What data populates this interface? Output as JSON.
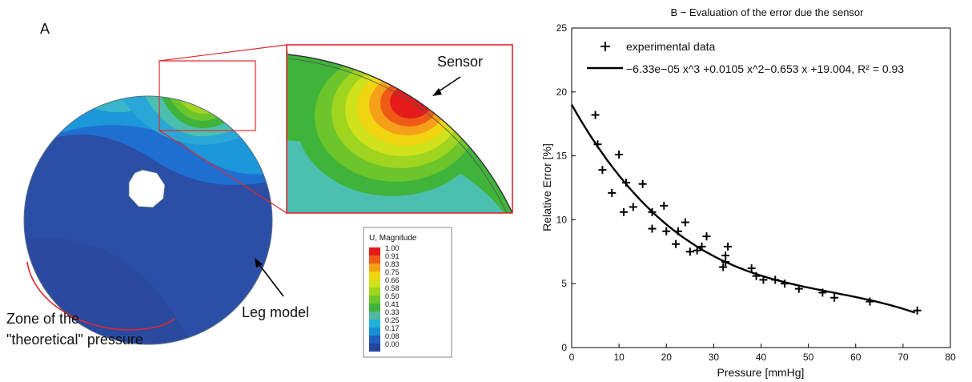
{
  "panel_a": {
    "label": "A",
    "sensor_label": "Sensor",
    "leg_label": "Leg model",
    "zone_label_line1": "Zone of the",
    "zone_label_line2": "\"theoretical\" pressure",
    "legend": {
      "title": "U, Magnitude",
      "levels": [
        "1.00",
        "0.91",
        "0.83",
        "0.75",
        "0.66",
        "0.58",
        "0.50",
        "0.41",
        "0.33",
        "0.25",
        "0.17",
        "0.08",
        "0.00"
      ],
      "colors": [
        "#e31b1b",
        "#ef5a16",
        "#f5a018",
        "#f2d511",
        "#cfe21b",
        "#9fd41f",
        "#6cc52a",
        "#3fb33a",
        "#52b8a4",
        "#1fb0d6",
        "#1a8fd8",
        "#1e5fbe",
        "#27449a"
      ]
    }
  },
  "chart_data": {
    "type": "scatter",
    "title": "B − Evaluation of the error due the sensor",
    "xlabel": "Pressure [mmHg]",
    "ylabel": "Relative Error [%]",
    "xlim": [
      0,
      80
    ],
    "ylim": [
      0,
      25
    ],
    "xticks": [
      0,
      10,
      20,
      30,
      40,
      50,
      60,
      70,
      80
    ],
    "yticks": [
      0,
      5,
      10,
      15,
      20,
      25
    ],
    "grid": false,
    "legend_position": "top-left",
    "series": [
      {
        "name": "experimental data",
        "marker": "+",
        "points": [
          [
            5,
            18.2
          ],
          [
            5.5,
            15.9
          ],
          [
            6.5,
            13.9
          ],
          [
            8.5,
            12.1
          ],
          [
            10,
            15.1
          ],
          [
            11,
            10.6
          ],
          [
            11.5,
            12.9
          ],
          [
            13,
            11
          ],
          [
            15,
            12.8
          ],
          [
            17,
            9.3
          ],
          [
            17,
            10.6
          ],
          [
            19.5,
            11.1
          ],
          [
            20,
            9.1
          ],
          [
            22,
            8.1
          ],
          [
            22.5,
            9.1
          ],
          [
            24,
            9.8
          ],
          [
            25,
            7.5
          ],
          [
            26.5,
            7.6
          ],
          [
            27.5,
            7.9
          ],
          [
            28.5,
            8.7
          ],
          [
            32,
            6.3
          ],
          [
            32.5,
            6.7
          ],
          [
            32.5,
            7.2
          ],
          [
            33,
            7.9
          ],
          [
            38,
            6.2
          ],
          [
            39,
            5.6
          ],
          [
            40.5,
            5.3
          ],
          [
            43,
            5.3
          ],
          [
            45,
            5
          ],
          [
            48,
            4.6
          ],
          [
            53,
            4.3
          ],
          [
            55.5,
            3.9
          ],
          [
            63,
            3.6
          ],
          [
            73,
            2.9
          ]
        ]
      },
      {
        "name": "−6.33e−05 x^3 +0.0105 x^2−0.653 x +19.004, R² =  0.93",
        "type": "line",
        "coefficients": [
          19.004,
          -0.653,
          0.0105,
          -6.33e-05
        ],
        "x_range": [
          0,
          72.5
        ]
      }
    ]
  }
}
